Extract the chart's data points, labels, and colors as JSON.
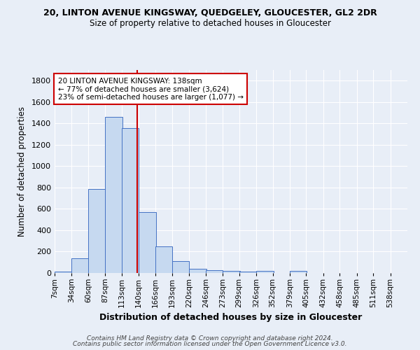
{
  "title": "20, LINTON AVENUE KINGSWAY, QUEDGELEY, GLOUCESTER, GL2 2DR",
  "subtitle": "Size of property relative to detached houses in Gloucester",
  "xlabel": "Distribution of detached houses by size in Gloucester",
  "ylabel": "Number of detached properties",
  "bin_labels": [
    "7sqm",
    "34sqm",
    "60sqm",
    "87sqm",
    "113sqm",
    "140sqm",
    "166sqm",
    "193sqm",
    "220sqm",
    "246sqm",
    "273sqm",
    "299sqm",
    "326sqm",
    "352sqm",
    "379sqm",
    "405sqm",
    "432sqm",
    "458sqm",
    "485sqm",
    "511sqm",
    "538sqm"
  ],
  "bin_edges": [
    7,
    34,
    60,
    87,
    113,
    140,
    166,
    193,
    220,
    246,
    273,
    299,
    326,
    352,
    379,
    405,
    432,
    458,
    485,
    511,
    538
  ],
  "bar_heights": [
    15,
    137,
    787,
    1462,
    1358,
    571,
    248,
    110,
    42,
    28,
    20,
    15,
    20,
    0,
    20,
    0,
    0,
    0,
    0,
    0
  ],
  "bar_color": "#c6d9f0",
  "bar_edge_color": "#4472c4",
  "property_value": 138,
  "vline_color": "#cc0000",
  "annotation_line1": "20 LINTON AVENUE KINGSWAY: 138sqm",
  "annotation_line2": "← 77% of detached houses are smaller (3,624)",
  "annotation_line3": "23% of semi-detached houses are larger (1,077) →",
  "annotation_box_color": "#ffffff",
  "annotation_box_edge_color": "#cc0000",
  "ylim": [
    0,
    1900
  ],
  "yticks": [
    0,
    200,
    400,
    600,
    800,
    1000,
    1200,
    1400,
    1600,
    1800
  ],
  "background_color": "#e8eef7",
  "grid_color": "#ffffff",
  "footer_line1": "Contains HM Land Registry data © Crown copyright and database right 2024.",
  "footer_line2": "Contains public sector information licensed under the Open Government Licence v3.0."
}
